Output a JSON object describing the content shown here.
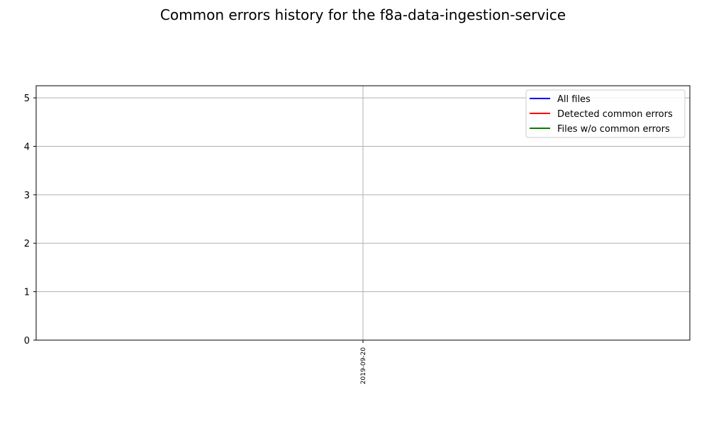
{
  "chart_data": {
    "type": "line",
    "title": "Common errors history for the f8a-data-ingestion-service",
    "x": [
      "2019-09-20"
    ],
    "series": [
      {
        "name": "All files",
        "color": "#0000ff",
        "values": [
          null
        ]
      },
      {
        "name": "Detected common errors",
        "color": "#ff0000",
        "values": [
          null
        ]
      },
      {
        "name": "Files w/o common errors",
        "color": "#008000",
        "values": [
          null
        ]
      }
    ],
    "ylim": [
      0,
      5.25
    ],
    "yticks": [
      0,
      1,
      2,
      3,
      4,
      5
    ],
    "grid": true,
    "legend_position": "top-right"
  }
}
